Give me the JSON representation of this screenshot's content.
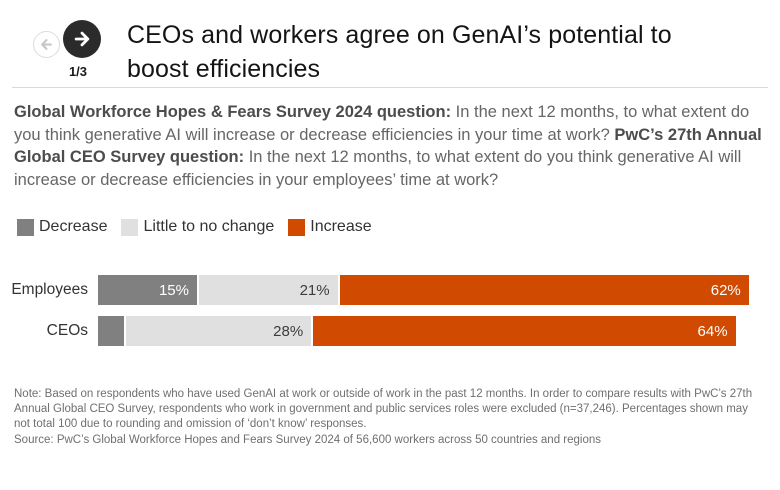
{
  "header": {
    "page_indicator": "1/3",
    "title": "CEOs and workers agree on GenAI’s potential to boost efficiencies"
  },
  "nav": {
    "prev_icon": "arrow-left",
    "next_icon": "arrow-right"
  },
  "questions": {
    "segments": [
      {
        "bold": true,
        "text": "Global Workforce Hopes & Fears Survey 2024 question:"
      },
      {
        "bold": false,
        "text": " In the next 12 months, to what extent do you think generative AI will increase or decrease efficiencies in your time at work? "
      },
      {
        "bold": true,
        "text": "PwC’s 27th Annual Global CEO Survey question:"
      },
      {
        "bold": false,
        "text": " In the next 12 months, to what extent do you think generative AI will increase or decrease efficiencies in your employees’ time at work?"
      }
    ]
  },
  "legend": [
    {
      "label": "Decrease",
      "color": "#808080"
    },
    {
      "label": "Little to no change",
      "color": "#e0e0e0"
    },
    {
      "label": "Increase",
      "color": "#d04a02"
    }
  ],
  "chart_data": {
    "type": "bar",
    "orientation": "horizontal-stacked",
    "unit": "%",
    "xlim": [
      0,
      100
    ],
    "categories": [
      "Employees",
      "CEOs"
    ],
    "series": [
      {
        "name": "Decrease",
        "color": "#808080",
        "label_color": "#ffffff",
        "values": [
          15,
          4
        ],
        "labels": [
          "15%",
          ""
        ]
      },
      {
        "name": "Little to no change",
        "color": "#e0e0e0",
        "label_color": "#3d3d3d",
        "values": [
          21,
          28
        ],
        "labels": [
          "21%",
          "28%"
        ]
      },
      {
        "name": "Increase",
        "color": "#d04a02",
        "label_color": "#ffffff",
        "values": [
          62,
          64
        ],
        "labels": [
          "62%",
          "64%"
        ]
      }
    ]
  },
  "footnote": {
    "note": "Note: Based on respondents who have used GenAI at work or outside of work in the past 12 months. In order to compare results with PwC’s 27th Annual Global CEO Survey, respondents who work in government and public services roles were excluded (n=37,246). Percentages shown may not total 100 due to rounding and omission of ‘don’t know’ responses.",
    "source": "Source: PwC’s Global Workforce Hopes and Fears Survey 2024 of 56,600 workers across 50 countries and regions"
  }
}
